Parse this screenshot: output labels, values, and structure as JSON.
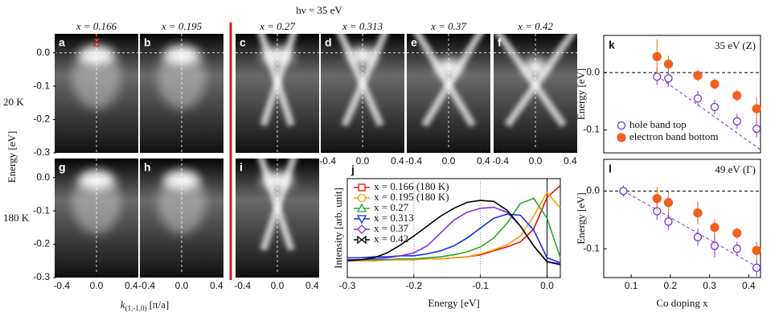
{
  "arpes": {
    "title": "hν = 35 eV",
    "dopings": [
      "x = 0.166",
      "x = 0.195",
      "x = 0.27",
      "x = 0.313",
      "x = 0.37",
      "x = 0.42"
    ],
    "temperatures": [
      "20 K",
      "180 K"
    ],
    "panel_labels": [
      "a",
      "b",
      "c",
      "d",
      "e",
      "f",
      "g",
      "h",
      "i"
    ],
    "z_label": "Z",
    "energy_label": "Energy [eV]",
    "energy_lim": [
      -0.3,
      0.057
    ],
    "energy_ticks": [
      {
        "value": 0,
        "label": "0.0"
      },
      -0.1,
      -0.2,
      -0.3
    ],
    "k_label": {
      "symbol": "k",
      "subscript": "(1,-1,0)",
      "unit": "[π/a]"
    },
    "k_lim": [
      -0.48,
      0.48
    ],
    "k_ticks": [
      -0.4,
      {
        "value": 0,
        "label": "0.0"
      },
      0.4
    ]
  },
  "chart_data": [
    {
      "type": "line",
      "panel_label": "j",
      "xlabel": "Energy [eV]",
      "ylabel": "Intensity [arb. unit]",
      "x": [
        -0.3,
        -0.28,
        -0.26,
        -0.24,
        -0.22,
        -0.2,
        -0.18,
        -0.16,
        -0.14,
        -0.12,
        -0.1,
        -0.08,
        -0.06,
        -0.04,
        -0.02,
        0,
        0.02
      ],
      "xlim": [
        -0.3,
        0.02
      ],
      "ylim": [
        0,
        1
      ],
      "xticks": [
        -0.3,
        -0.2,
        -0.1,
        {
          "value": 0,
          "label": "0.0"
        }
      ],
      "series": [
        {
          "name": "x = 0.166 (180 K)",
          "color": "#e8120c",
          "marker": "square",
          "values": [
            0.17,
            0.17,
            0.17,
            0.18,
            0.18,
            0.18,
            0.19,
            0.19,
            0.2,
            0.21,
            0.23,
            0.27,
            0.31,
            0.36,
            0.49,
            0.81,
            0.93
          ]
        },
        {
          "name": "x = 0.195 (180 K)",
          "color": "#f5a000",
          "marker": "circle",
          "values": [
            0.17,
            0.17,
            0.17,
            0.18,
            0.18,
            0.18,
            0.19,
            0.19,
            0.2,
            0.21,
            0.24,
            0.28,
            0.33,
            0.42,
            0.62,
            0.86,
            0.7
          ]
        },
        {
          "name": "x = 0.27",
          "color": "#2aa82a",
          "marker": "triangle-up",
          "values": [
            0.18,
            0.18,
            0.18,
            0.18,
            0.19,
            0.19,
            0.2,
            0.21,
            0.23,
            0.26,
            0.31,
            0.4,
            0.55,
            0.75,
            0.8,
            0.6,
            0.2
          ]
        },
        {
          "name": "x = 0.313",
          "color": "#1030e8",
          "marker": "triangle-down",
          "values": [
            0.2,
            0.2,
            0.21,
            0.21,
            0.22,
            0.22,
            0.24,
            0.27,
            0.32,
            0.4,
            0.5,
            0.6,
            0.64,
            0.63,
            0.48,
            0.2,
            0.15
          ]
        },
        {
          "name": "x = 0.37",
          "color": "#8a2be2",
          "marker": "diamond",
          "values": [
            0.18,
            0.18,
            0.19,
            0.2,
            0.22,
            0.25,
            0.32,
            0.45,
            0.58,
            0.66,
            0.7,
            0.71,
            0.66,
            0.52,
            0.32,
            0.16,
            0.14
          ]
        },
        {
          "name": "x = 0.42",
          "color": "#000000",
          "marker": "bowtie",
          "values": [
            0.17,
            0.18,
            0.2,
            0.25,
            0.33,
            0.42,
            0.52,
            0.62,
            0.7,
            0.76,
            0.78,
            0.77,
            0.68,
            0.52,
            0.32,
            0.16,
            0.13
          ]
        }
      ]
    },
    {
      "type": "scatter",
      "panel_label": "k",
      "annotation": "35 eV (Z)",
      "ylabel": "Energy [eV]",
      "xlim": [
        0.03,
        0.43
      ],
      "ylim": [
        -0.14,
        0.065
      ],
      "yticks": [
        {
          "value": 0,
          "label": "0.0"
        },
        -0.1
      ],
      "series": [
        {
          "name": "hole band top",
          "color": "#7a2fd0",
          "marker": "open-circle",
          "x": [
            0.166,
            0.195,
            0.27,
            0.313,
            0.37,
            0.42
          ],
          "values": [
            -0.007,
            -0.01,
            -0.045,
            -0.06,
            -0.085,
            -0.098
          ],
          "errors": [
            0.015,
            0.015,
            0.013,
            0.013,
            0.013,
            0.015
          ]
        },
        {
          "name": "electron band bottom",
          "color": "#f06020",
          "marker": "filled-circle",
          "x": [
            0.166,
            0.195,
            0.27,
            0.313,
            0.37,
            0.42
          ],
          "values": [
            0.028,
            0.015,
            -0.005,
            -0.02,
            -0.04,
            -0.063
          ],
          "errors": [
            0.03,
            0.015,
            0.01,
            0.01,
            0.01,
            0.02
          ]
        }
      ]
    },
    {
      "type": "scatter",
      "panel_label": "l",
      "annotation": "49 eV (Γ)",
      "ylabel": "Energy [eV]",
      "xlabel": "Co doping x",
      "xlim": [
        0.03,
        0.43
      ],
      "ylim": [
        -0.15,
        0.055
      ],
      "xticks": [
        0.1,
        0.2,
        0.3,
        0.4
      ],
      "yticks": [
        {
          "value": 0,
          "label": "0.0"
        },
        -0.1
      ],
      "series": [
        {
          "color": "#7a2fd0",
          "marker": "open-circle",
          "x": [
            0.08,
            0.166,
            0.195,
            0.27,
            0.313,
            0.37,
            0.42
          ],
          "values": [
            0,
            -0.035,
            -0.053,
            -0.08,
            -0.095,
            -0.1,
            -0.133
          ],
          "errors": [
            0.01,
            0.015,
            0.015,
            0.015,
            0.02,
            0.012,
            0.015
          ]
        },
        {
          "color": "#f06020",
          "marker": "filled-circle",
          "x": [
            0.166,
            0.195,
            0.27,
            0.313,
            0.37,
            0.42
          ],
          "values": [
            -0.013,
            -0.02,
            -0.038,
            -0.063,
            -0.073,
            -0.103
          ],
          "errors": [
            0.02,
            0.02,
            0.02,
            0.015,
            0.01,
            0.015
          ]
        }
      ]
    }
  ]
}
